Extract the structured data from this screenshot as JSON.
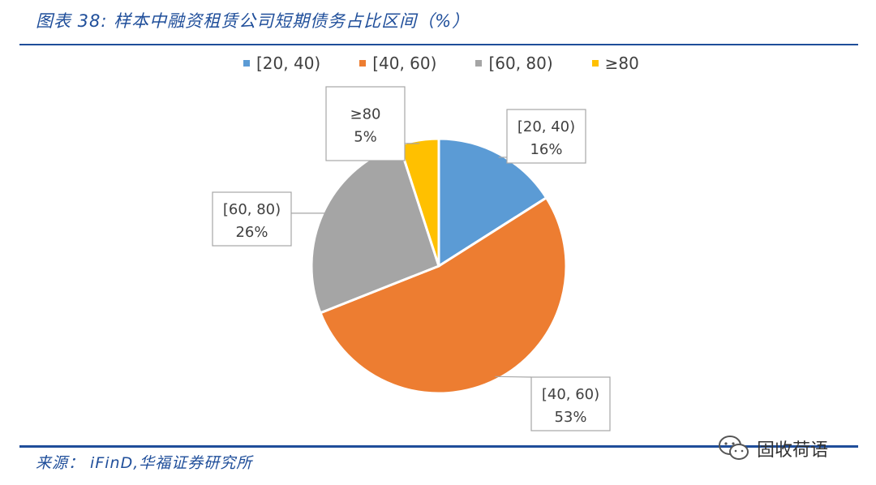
{
  "header": {
    "title": "图表 38:  样本中融资租赁公司短期债务占比区间（%）"
  },
  "footer": {
    "source": "来源：  iFinD,华福证券研究所",
    "watermark": "固收荷语",
    "watermark_icon": "wechat-icon"
  },
  "colors": {
    "title_blue": "#1f4e9a",
    "series": [
      "#5b9bd5",
      "#ed7d31",
      "#a5a5a5",
      "#ffc000"
    ]
  },
  "chart_data": {
    "type": "pie",
    "title": "",
    "legend_position": "top",
    "categories": [
      "[20, 40)",
      "[40, 60)",
      "[60, 80)",
      "≥80"
    ],
    "values": [
      16,
      53,
      26,
      5
    ],
    "labels": [
      "16%",
      "53%",
      "26%",
      "5%"
    ],
    "legend": [
      "[20, 40)",
      "[40, 60)",
      "[60, 80)",
      "≥80"
    ]
  }
}
